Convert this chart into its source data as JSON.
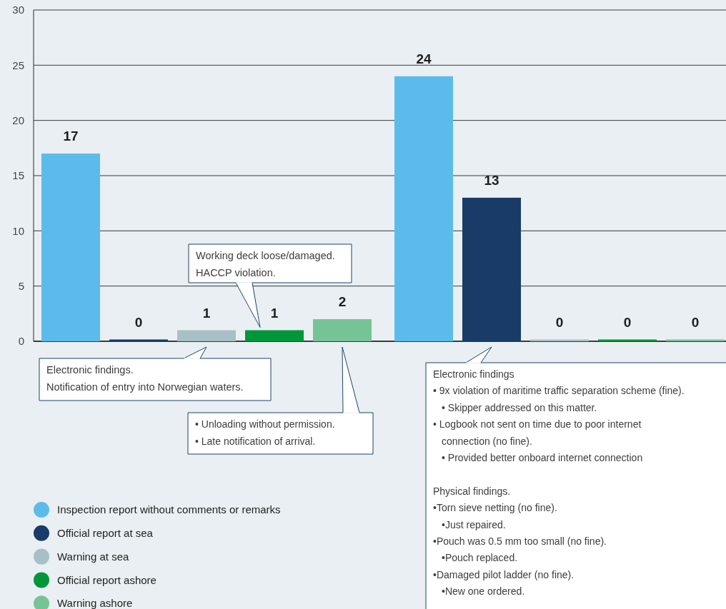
{
  "chart_data": {
    "type": "bar",
    "categories": [
      null,
      null
    ],
    "series": [
      {
        "name": "Inspection report without comments or remarks",
        "color": "#5dbbeb",
        "values": [
          17,
          24
        ]
      },
      {
        "name": "Official report at sea",
        "color": "#193b67",
        "values": [
          0,
          13
        ]
      },
      {
        "name": "Warning at sea",
        "color": "#a8c0c5",
        "values": [
          1,
          0
        ]
      },
      {
        "name": "Official report ashore",
        "color": "#009639",
        "values": [
          1,
          0
        ]
      },
      {
        "name": "Warning ashore",
        "color": "#76c495",
        "values": [
          2,
          0
        ]
      }
    ],
    "ylim": [
      0,
      30
    ],
    "yticks": [
      0,
      5,
      10,
      15,
      20,
      25,
      30
    ],
    "grid": "y",
    "legend": "bottom left",
    "data_labels": true,
    "annotations": [
      "Working deck loose/damaged.\nHACCP violation.",
      "Electronic findings.\nNotification of entry into Norwegian waters.",
      "• Unloading without permission.\n• Late notification of arrival.",
      "Electronic findings\n• 9x violation of maritime traffic separation scheme (fine).\n• Skipper addressed on this matter.\n• Logbook not sent on time due to poor internet\nconnection (no fine).\n• Provided better onboard internet connection\n\nPhysical findings.\n•Torn sieve netting (no fine).\n•Just repaired.\n•Pouch was 0.5 mm too small (no fine).\n•Pouch replaced.\n•Damaged pilot ladder (no fine).\n•New one ordered."
    ]
  }
}
